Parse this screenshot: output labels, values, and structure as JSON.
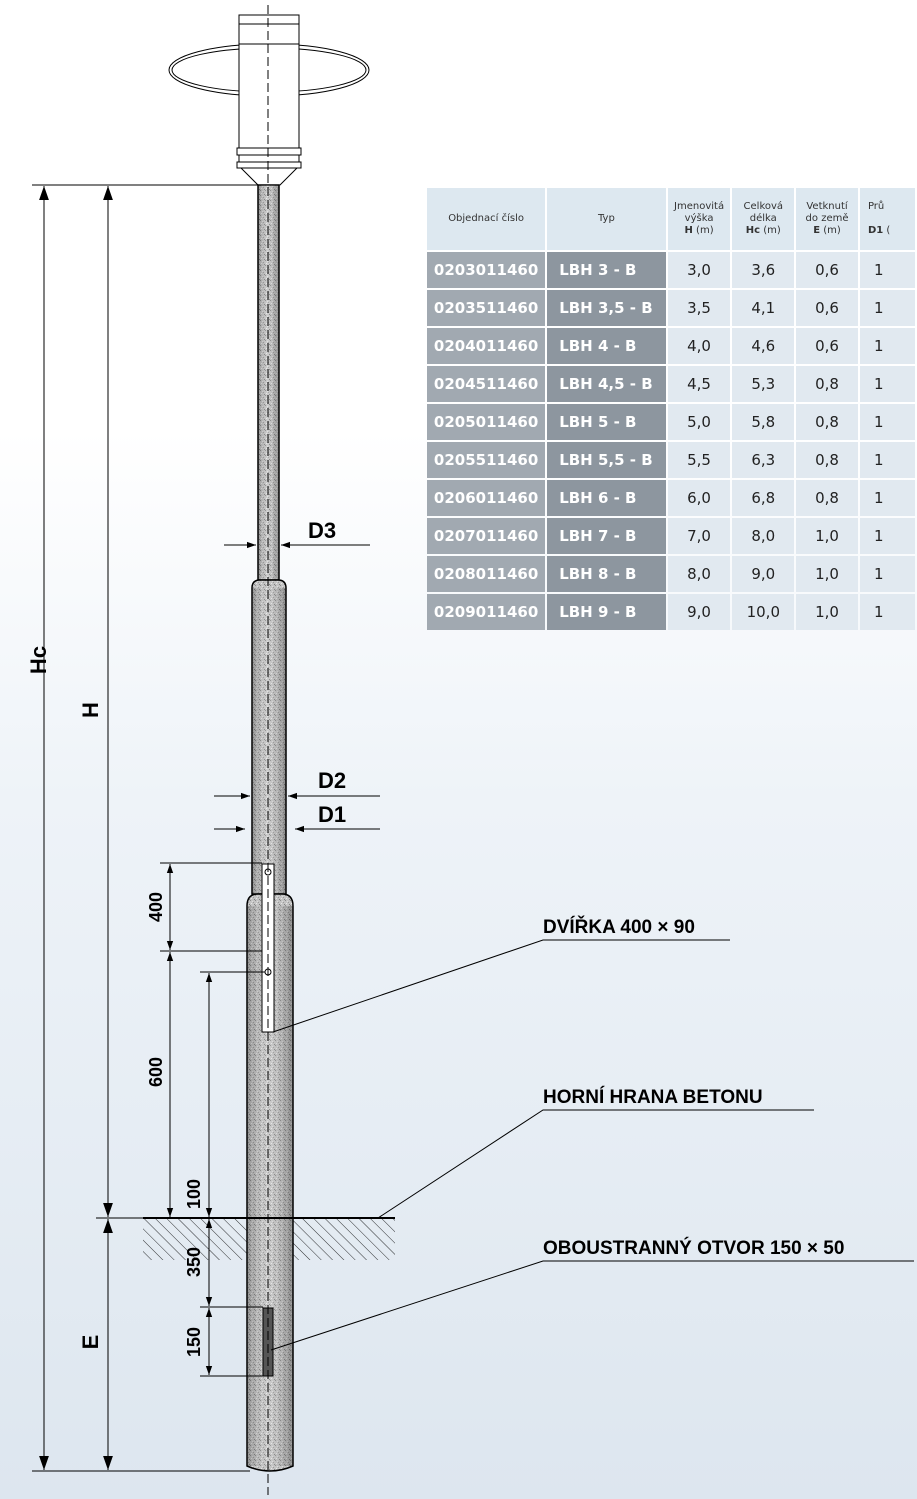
{
  "table": {
    "headers": [
      {
        "lines": [
          "Objednací číslo"
        ]
      },
      {
        "lines": [
          "Typ"
        ]
      },
      {
        "lines": [
          "Jmenovitá",
          "výška"
        ],
        "sym": "H",
        "unit": " (m)"
      },
      {
        "lines": [
          "Celková",
          "délka"
        ],
        "sym": "Hc",
        "unit": " (m)"
      },
      {
        "lines": [
          "Vetknutí",
          "do země"
        ],
        "sym": "E",
        "unit": " (m)"
      },
      {
        "lines": [
          "Prů"
        ],
        "sym": "D1",
        "unit": " ("
      }
    ],
    "rows": [
      [
        "0203011460",
        "LBH 3 - B",
        "3,0",
        "3,6",
        "0,6",
        "1"
      ],
      [
        "0203511460",
        "LBH 3,5 - B",
        "3,5",
        "4,1",
        "0,6",
        "1"
      ],
      [
        "0204011460",
        "LBH 4 - B",
        "4,0",
        "4,6",
        "0,6",
        "1"
      ],
      [
        "0204511460",
        "LBH 4,5 - B",
        "4,5",
        "5,3",
        "0,8",
        "1"
      ],
      [
        "0205011460",
        "LBH 5 - B",
        "5,0",
        "5,8",
        "0,8",
        "1"
      ],
      [
        "0205511460",
        "LBH 5,5 - B",
        "5,5",
        "6,3",
        "0,8",
        "1"
      ],
      [
        "0206011460",
        "LBH 6 - B",
        "6,0",
        "6,8",
        "0,8",
        "1"
      ],
      [
        "0207011460",
        "LBH 7 - B",
        "7,0",
        "8,0",
        "1,0",
        "1"
      ],
      [
        "0208011460",
        "LBH 8 - B",
        "8,0",
        "9,0",
        "1,0",
        "1"
      ],
      [
        "0209011460",
        "LBH 9 - B",
        "9,0",
        "10,0",
        "1,0",
        "1"
      ]
    ]
  },
  "labels": {
    "hc": "Hc",
    "h": "H",
    "e": "E",
    "d1": "D1",
    "d2": "D2",
    "d3": "D3",
    "dim_400": "400",
    "dim_600": "600",
    "dim_100": "100",
    "dim_350": "350",
    "dim_150": "150",
    "door": "DVÍŘKA 400 × 90",
    "concrete": "HORNÍ HRANA BETONU",
    "hole": "OBOUSTRANNÝ OTVOR 150 × 50"
  },
  "colors": {
    "order_cell": "#a1a9b1",
    "type_cell": "#8d969f",
    "value_cell": "#e1e9f0",
    "header_cell": "#dde8f0",
    "pole_fill": "#bfbfbf",
    "line": "#000000"
  }
}
